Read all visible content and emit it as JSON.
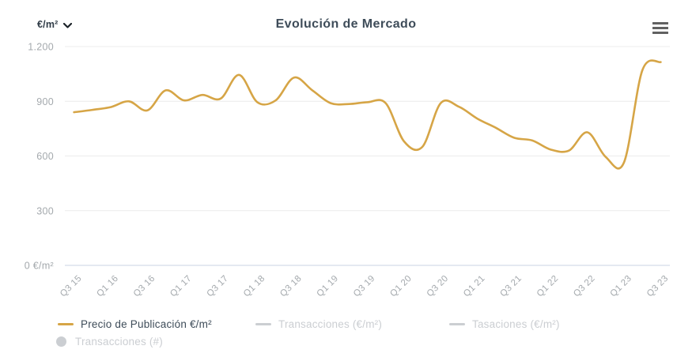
{
  "header": {
    "unit_selector": {
      "value": "€/m²",
      "icon": "chevron-down-icon"
    },
    "title": "Evolución de Mercado",
    "menu": {
      "icon": "hamburger-menu-icon"
    }
  },
  "colors": {
    "accent_gold": "#d6a546",
    "title_text": "#3e4c59",
    "axis_label": "#a4a9ad",
    "disabled_gray": "#cbced2",
    "gridline": "#ececec",
    "axis_line": "#c9d3e3"
  },
  "chart_data": {
    "type": "line",
    "title": "Evolución de Mercado",
    "unit": "€/m²",
    "grid": true,
    "legend_position": "bottom",
    "ylim": [
      0,
      1200
    ],
    "y_ticks": [
      0,
      300,
      600,
      900,
      1200
    ],
    "y_tick_labels": [
      "0 €/m²",
      "300",
      "600",
      "900",
      "1.200"
    ],
    "x_tick_labels": [
      "Q3 15",
      "Q1 16",
      "Q3 16",
      "Q1 17",
      "Q3 17",
      "Q1 18",
      "Q3 18",
      "Q1 19",
      "Q3 19",
      "Q1 20",
      "Q3 20",
      "Q1 21",
      "Q3 21",
      "Q1 22",
      "Q3 22",
      "Q1 23",
      "Q3 23"
    ],
    "x_tick_every": 2,
    "categories": [
      "Q3 15",
      "Q4 15",
      "Q1 16",
      "Q2 16",
      "Q3 16",
      "Q4 16",
      "Q1 17",
      "Q2 17",
      "Q3 17",
      "Q4 17",
      "Q1 18",
      "Q2 18",
      "Q3 18",
      "Q4 18",
      "Q1 19",
      "Q2 19",
      "Q3 19",
      "Q4 19",
      "Q1 20",
      "Q2 20",
      "Q3 20",
      "Q4 20",
      "Q1 21",
      "Q2 21",
      "Q3 21",
      "Q4 21",
      "Q1 22",
      "Q2 22",
      "Q3 22",
      "Q4 22",
      "Q1 23",
      "Q2 23",
      "Q3 23"
    ],
    "series": [
      {
        "name": "Precio de Publicación €/m²",
        "color": "#d6a546",
        "visible": true,
        "values": [
          840,
          853,
          868,
          900,
          850,
          960,
          905,
          935,
          915,
          1045,
          895,
          905,
          1030,
          960,
          890,
          885,
          895,
          890,
          680,
          650,
          890,
          870,
          805,
          755,
          700,
          685,
          635,
          630,
          730,
          595,
          565,
          1070,
          1115
        ]
      },
      {
        "name": "Transacciones (€/m²)",
        "color": "#cbced2",
        "visible": false
      },
      {
        "name": "Tasaciones (€/m²)",
        "color": "#cbced2",
        "visible": false
      },
      {
        "name": "Transacciones (#)",
        "color": "#cbced2",
        "visible": false
      }
    ]
  },
  "legend": {
    "items": [
      {
        "label": "Precio de Publicación €/m²",
        "marker": "line",
        "color": "#d6a546",
        "active": true
      },
      {
        "label": "Transacciones (€/m²)",
        "marker": "line",
        "color": "#cbced2",
        "active": false
      },
      {
        "label": "Tasaciones (€/m²)",
        "marker": "line",
        "color": "#cbced2",
        "active": false
      },
      {
        "label": "Transacciones (#)",
        "marker": "circle",
        "color": "#cbced2",
        "active": false
      }
    ]
  }
}
